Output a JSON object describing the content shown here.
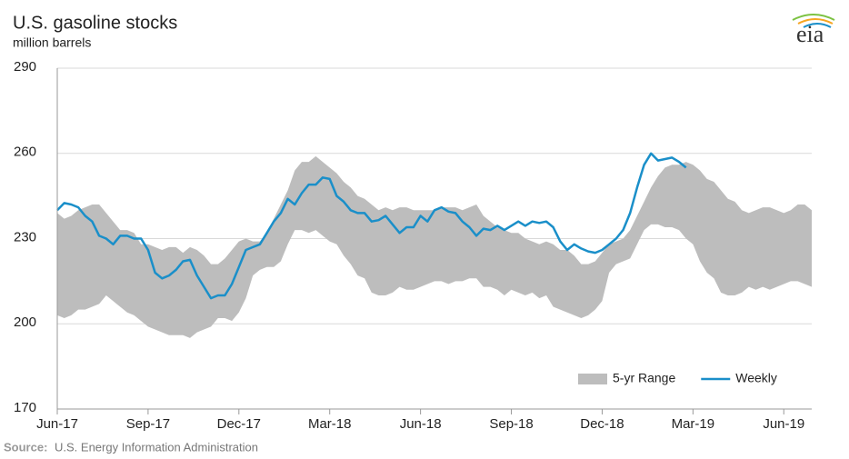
{
  "chart_data": {
    "type": "line",
    "title": "U.S. gasoline stocks",
    "subtitle": "million barrels",
    "source_label": "Source:",
    "source": "U.S. Energy Information Administration",
    "logo": "eia",
    "categories": [
      "Jun-17",
      null,
      null,
      null,
      null,
      null,
      null,
      null,
      null,
      null,
      null,
      null,
      null,
      "Sep-17",
      null,
      null,
      null,
      null,
      null,
      null,
      null,
      null,
      null,
      null,
      null,
      null,
      "Dec-17",
      null,
      null,
      null,
      null,
      null,
      null,
      null,
      null,
      null,
      null,
      null,
      null,
      "Mar-18",
      null,
      null,
      null,
      null,
      null,
      null,
      null,
      null,
      null,
      null,
      null,
      null,
      "Jun-18",
      null,
      null,
      null,
      null,
      null,
      null,
      null,
      null,
      null,
      null,
      null,
      null,
      "Sep-18",
      null,
      null,
      null,
      null,
      null,
      null,
      null,
      null,
      null,
      null,
      null,
      null,
      "Dec-18",
      null,
      null,
      null,
      null,
      null,
      null,
      null,
      null,
      null,
      null,
      null,
      null,
      "Mar-19",
      null,
      null,
      null,
      null,
      null,
      null,
      null,
      null,
      null,
      null,
      null,
      null,
      "Jun-19",
      null,
      null,
      null,
      null
    ],
    "series": [
      {
        "name": "5-yr Range",
        "kind": "band",
        "color": "#bdbdbd",
        "high": [
          239,
          237,
          238,
          240,
          241,
          242,
          242,
          239,
          236,
          233,
          233,
          232,
          228,
          228,
          227,
          226,
          227,
          227,
          225,
          227,
          226,
          224,
          221,
          221,
          223,
          226,
          229,
          230,
          229,
          229,
          232,
          237,
          242,
          247,
          254,
          257,
          257,
          259,
          257,
          255,
          253,
          250,
          248,
          245,
          244,
          242,
          240,
          241,
          240,
          241,
          241,
          240,
          240,
          240,
          240,
          241,
          241,
          241,
          240,
          241,
          242,
          238,
          236,
          234,
          233,
          232,
          232,
          230,
          229,
          228,
          229,
          228,
          226,
          226,
          224,
          221,
          221,
          222,
          225,
          228,
          229,
          230,
          233,
          238,
          243,
          248,
          252,
          255,
          256,
          256,
          257,
          256,
          254,
          251,
          250,
          247,
          244,
          243,
          240,
          239,
          240,
          241,
          241,
          240,
          239,
          240,
          242,
          242,
          240
        ],
        "low": [
          203,
          202,
          203,
          205,
          205,
          206,
          207,
          210,
          208,
          206,
          204,
          203,
          201,
          199,
          198,
          197,
          196,
          196,
          196,
          195,
          197,
          198,
          199,
          202,
          202,
          201,
          204,
          209,
          217,
          219,
          220,
          220,
          222,
          228,
          233,
          233,
          232,
          233,
          231,
          229,
          228,
          224,
          221,
          217,
          216,
          211,
          210,
          210,
          211,
          213,
          212,
          212,
          213,
          214,
          215,
          215,
          214,
          215,
          215,
          216,
          216,
          213,
          213,
          212,
          210,
          212,
          211,
          210,
          211,
          209,
          210,
          206,
          205,
          204,
          203,
          202,
          203,
          205,
          208,
          218,
          221,
          222,
          223,
          228,
          233,
          235,
          235,
          234,
          234,
          233,
          230,
          228,
          222,
          218,
          216,
          211,
          210,
          210,
          211,
          213,
          212,
          213,
          212,
          213,
          214,
          215,
          215,
          214,
          213
        ]
      },
      {
        "name": "Weekly",
        "color": "#1a8fc9",
        "values": [
          240,
          242.5,
          242,
          241,
          238,
          236,
          231,
          230,
          228,
          231,
          231,
          230,
          230,
          226,
          218,
          216,
          217,
          219,
          222,
          222.5,
          217,
          213,
          209,
          210,
          210,
          214,
          220,
          226,
          227,
          228,
          232,
          236,
          239,
          244,
          242,
          246,
          249,
          249,
          251.5,
          251,
          245,
          243,
          240,
          239,
          239,
          236,
          236.5,
          238,
          235,
          232,
          234,
          234,
          238,
          236,
          240,
          241,
          239.5,
          239,
          236,
          234,
          231,
          233.5,
          233,
          234.5,
          233,
          234.5,
          236,
          234.5,
          236,
          235.5,
          236,
          234,
          229,
          226,
          228,
          226.5,
          225.5,
          225,
          226,
          228,
          230,
          233,
          239,
          248,
          256,
          260,
          257.5,
          258,
          258.5,
          257,
          255,
          null,
          null,
          null,
          null,
          null,
          null,
          null,
          null,
          null,
          null,
          null,
          null,
          null,
          null,
          null,
          null,
          null,
          null
        ]
      }
    ],
    "ylim": [
      170,
      290
    ],
    "yticks": [
      170,
      200,
      230,
      260,
      290
    ],
    "grid": true,
    "legend": "lower right"
  }
}
